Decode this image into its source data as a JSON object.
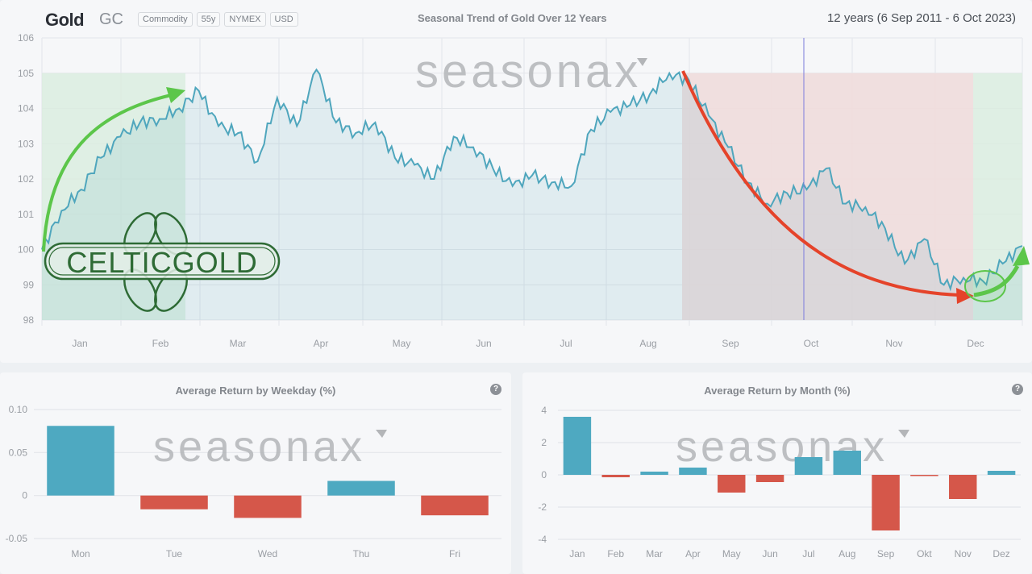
{
  "header": {
    "title": "Gold",
    "ticker": "GC",
    "tags": [
      "Commodity",
      "55y",
      "NYMEX",
      "USD"
    ],
    "chart_title": "Seasonal Trend of Gold Over 12 Years",
    "range": "12 years (6 Sep 2011 - 6 Oct 2023)"
  },
  "watermark": "seasonax",
  "overlay_logo": "CELTICGOLD",
  "colors": {
    "line": "#4fa6bd",
    "positive_bar": "#4ea9c1",
    "negative_bar": "#d5574a",
    "green_zone": "#d9ecdf",
    "red_zone": "#f0dcdc",
    "arrow_green": "#5cc64a",
    "arrow_red": "#e5432a",
    "today_line": "#7b7bdc"
  },
  "weekday_panel": {
    "title": "Average Return by Weekday (%)",
    "help": "?"
  },
  "month_panel": {
    "title": "Average Return by Month (%)",
    "help": "?"
  },
  "chart_data": [
    {
      "type": "line",
      "title": "Seasonal Trend of Gold Over 12 Years",
      "xlabel": "",
      "ylabel": "",
      "ylim": [
        98,
        106
      ],
      "yticks": [
        98,
        99,
        100,
        101,
        102,
        103,
        104,
        105,
        106
      ],
      "xticks": [
        "Jan",
        "Feb",
        "Mar",
        "Apr",
        "May",
        "Jun",
        "Jul",
        "Aug",
        "Sep",
        "Oct",
        "Nov",
        "Dec"
      ],
      "grid": true,
      "x": [
        "Jan 1",
        "Jan 8",
        "Jan 15",
        "Jan 22",
        "Jan 29",
        "Feb 5",
        "Feb 12",
        "Feb 19",
        "Feb 26",
        "Mar 5",
        "Mar 12",
        "Mar 19",
        "Mar 26",
        "Apr 2",
        "Apr 9",
        "Apr 16",
        "Apr 23",
        "Apr 30",
        "May 7",
        "May 14",
        "May 21",
        "May 28",
        "Jun 4",
        "Jun 11",
        "Jun 18",
        "Jun 25",
        "Jul 2",
        "Jul 9",
        "Jul 16",
        "Jul 23",
        "Jul 30",
        "Aug 6",
        "Aug 13",
        "Aug 20",
        "Sep 1",
        "Sep 8",
        "Sep 15",
        "Sep 22",
        "Oct 1",
        "Oct 8",
        "Oct 15",
        "Oct 22",
        "Nov 1",
        "Nov 8",
        "Nov 15",
        "Nov 22",
        "Dec 1",
        "Dec 8",
        "Dec 15",
        "Dec 22",
        "Dec 31"
      ],
      "series": [
        {
          "name": "Gold seasonal trend",
          "values": [
            100.0,
            101.1,
            101.7,
            102.6,
            103.2,
            103.6,
            103.7,
            104.0,
            104.5,
            103.5,
            103.3,
            102.5,
            104.3,
            103.5,
            105.1,
            103.6,
            103.3,
            103.6,
            102.6,
            102.4,
            102.0,
            103.2,
            102.9,
            102.3,
            101.8,
            102.1,
            101.9,
            101.8,
            103.4,
            103.9,
            104.1,
            104.4,
            105.0,
            104.8,
            103.8,
            102.9,
            101.9,
            101.3,
            101.6,
            101.7,
            102.3,
            101.3,
            101.2,
            100.6,
            99.6,
            100.3,
            99.0,
            99.2,
            99.1,
            99.6,
            100.1
          ]
        }
      ],
      "annotations": {
        "green_zone_1": [
          "Jan 1",
          "Feb 21"
        ],
        "red_zone": [
          "Aug 21",
          "Dec 1"
        ],
        "green_zone_2": [
          "Dec 1",
          "Dec 31"
        ],
        "today_marker": "Oct 6"
      }
    },
    {
      "type": "bar",
      "title": "Average Return by Weekday (%)",
      "categories": [
        "Mon",
        "Tue",
        "Wed",
        "Thu",
        "Fri"
      ],
      "values": [
        0.081,
        -0.016,
        -0.026,
        0.017,
        -0.023
      ],
      "ylim": [
        -0.05,
        0.1
      ],
      "yticks": [
        "0.10",
        "0.05",
        "0",
        "-0.05"
      ],
      "grid": true
    },
    {
      "type": "bar",
      "title": "Average Return by Month (%)",
      "categories": [
        "Jan",
        "Feb",
        "Mar",
        "Apr",
        "May",
        "Jun",
        "Jul",
        "Aug",
        "Sep",
        "Okt",
        "Nov",
        "Dez"
      ],
      "values": [
        3.6,
        -0.15,
        0.2,
        0.45,
        -1.1,
        -0.45,
        1.1,
        1.5,
        -3.45,
        -0.05,
        -1.5,
        0.25
      ],
      "ylim": [
        -4,
        4
      ],
      "yticks": [
        "4",
        "2",
        "0",
        "-2",
        "-4"
      ],
      "grid": true
    }
  ]
}
